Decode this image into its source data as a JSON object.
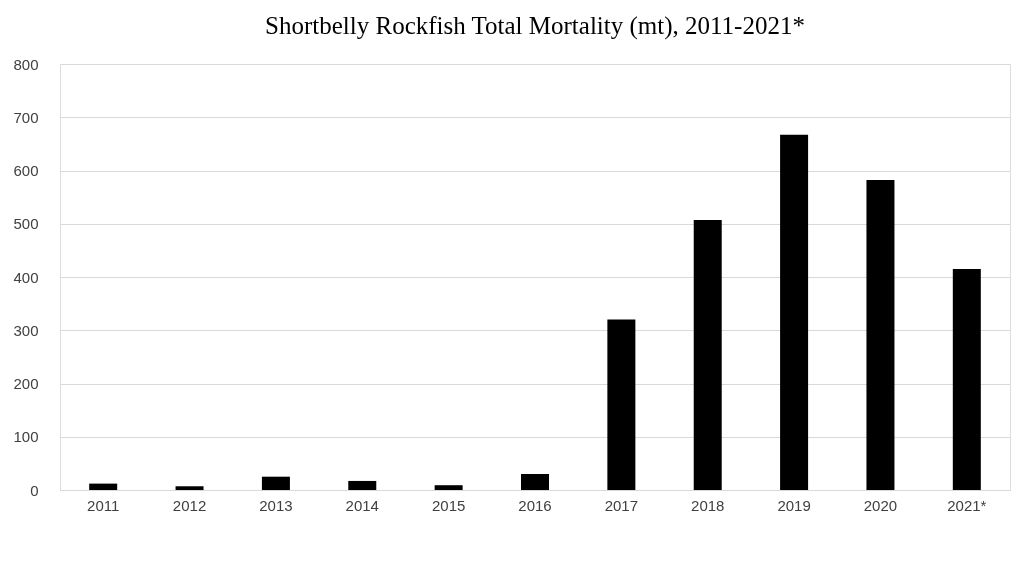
{
  "chart_data": {
    "type": "bar",
    "title": "Shortbelly Rockfish Total Mortality (mt), 2011-2021*",
    "categories": [
      "2011",
      "2012",
      "2013",
      "2014",
      "2015",
      "2016",
      "2017",
      "2018",
      "2019",
      "2020",
      "2021*"
    ],
    "values": [
      12,
      7,
      25,
      17,
      9,
      30,
      320,
      507,
      667,
      582,
      415
    ],
    "color": "#000000",
    "ylim": [
      0,
      800
    ],
    "yticks": [
      0,
      100,
      200,
      300,
      400,
      500,
      600,
      700,
      800
    ],
    "grid": "y"
  }
}
